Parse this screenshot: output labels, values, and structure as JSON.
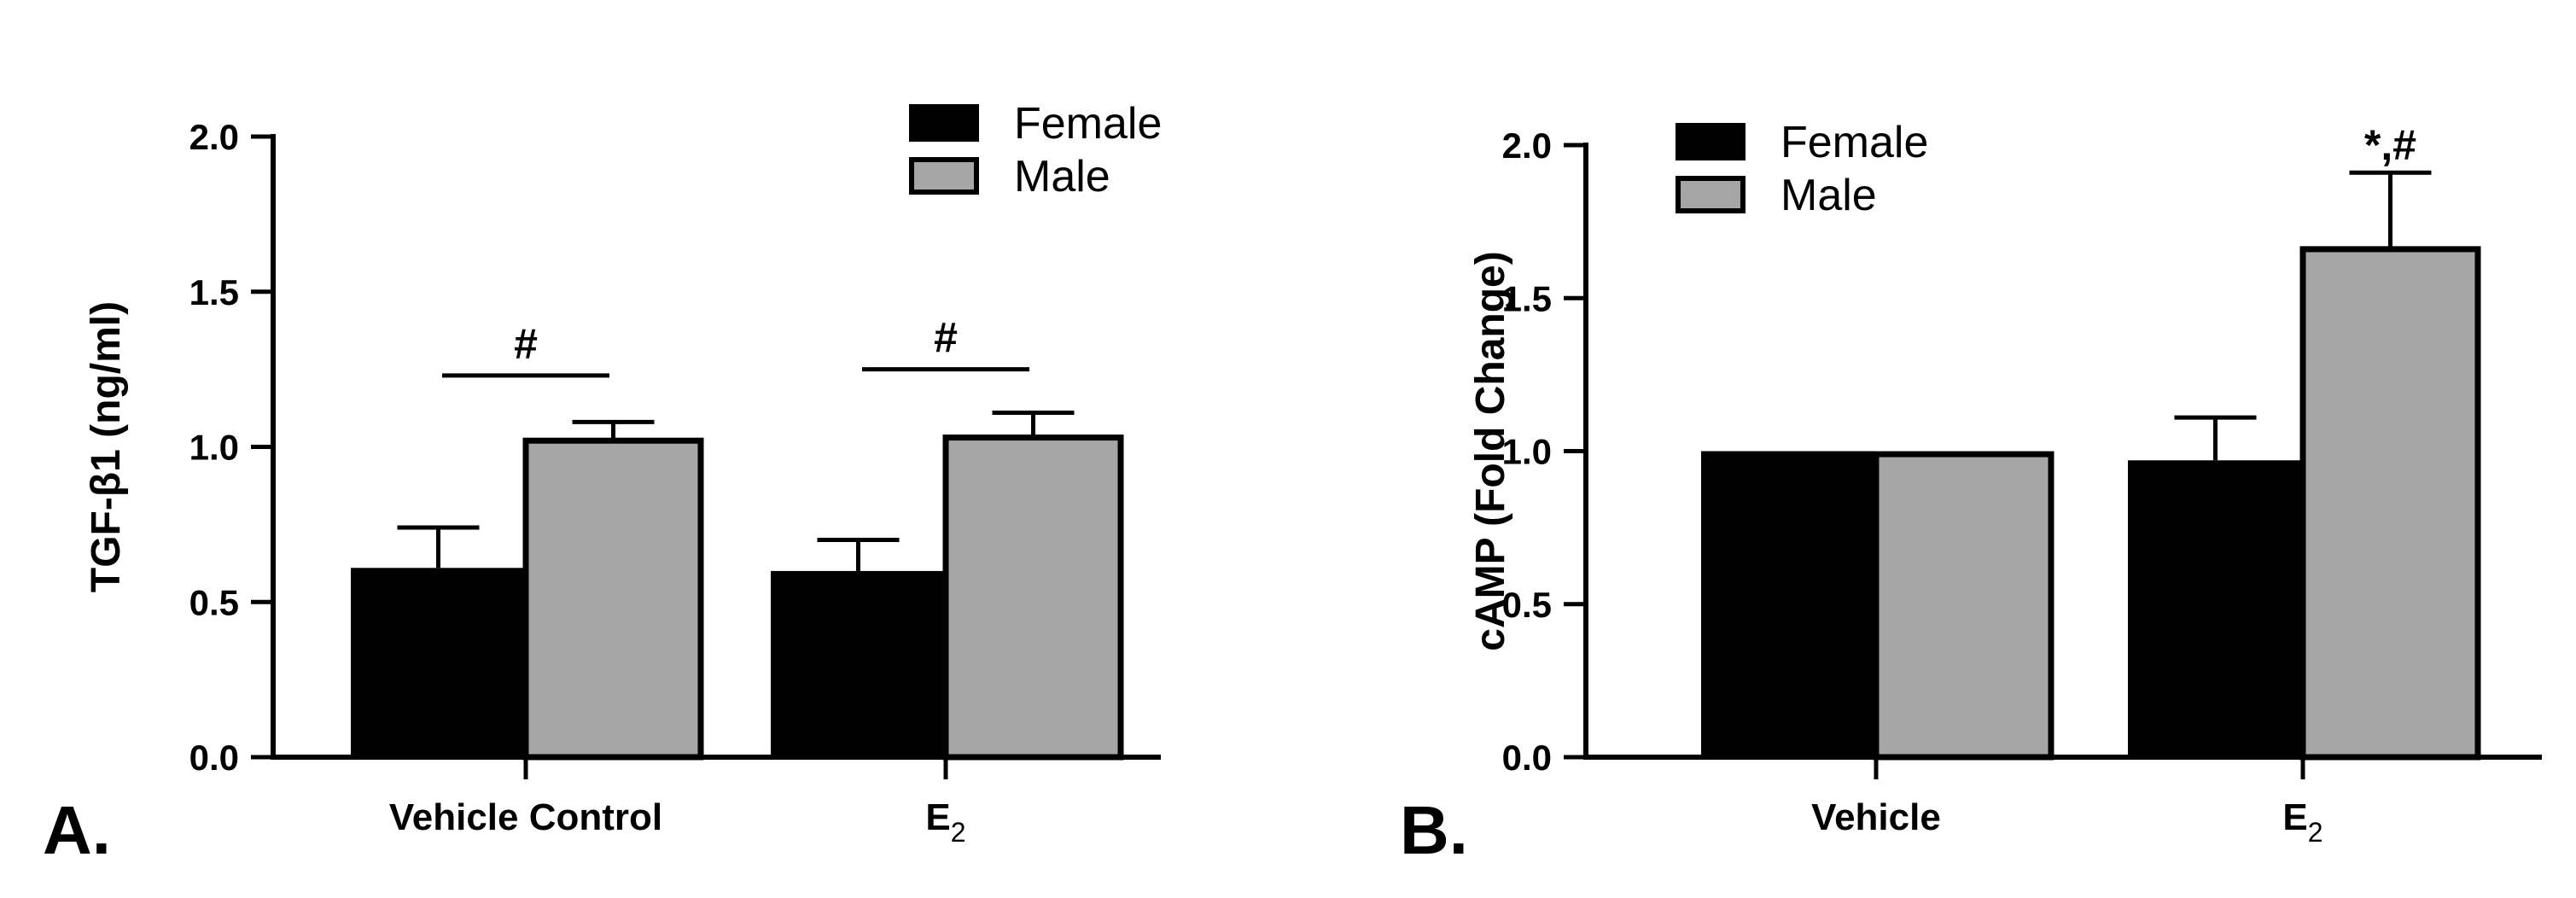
{
  "chart_data": [
    {
      "panel_label": "A.",
      "type": "bar",
      "title": "",
      "xlabel": "",
      "ylabel": "TGF-β1 (ng/ml)",
      "ylim": [
        0,
        2.0
      ],
      "yticks": [
        "0.0",
        "0.5",
        "1.0",
        "1.5",
        "2.0"
      ],
      "ytick_values": [
        0,
        0.5,
        1.0,
        1.5,
        2.0
      ],
      "categories": [
        {
          "label": "Vehicle Control",
          "subscript": ""
        },
        {
          "label": "E",
          "subscript": "2"
        }
      ],
      "series": [
        {
          "name": "Female",
          "color": "#000000",
          "values": [
            0.61,
            0.6
          ],
          "errors": [
            0.13,
            0.1
          ]
        },
        {
          "name": "Male",
          "color": "#a6a6a6",
          "values": [
            1.02,
            1.03
          ],
          "errors": [
            0.06,
            0.08
          ]
        }
      ],
      "legend_position": "top-right",
      "annotations": [
        {
          "text": "#",
          "category_index": 0,
          "level": 1.23
        },
        {
          "text": "#",
          "category_index": 1,
          "level": 1.25
        }
      ]
    },
    {
      "panel_label": "B.",
      "type": "bar",
      "title": "",
      "xlabel": "",
      "ylabel": "cAMP (Fold Change)",
      "ylim": [
        0,
        2.0
      ],
      "yticks": [
        "0.0",
        "0.5",
        "1.0",
        "1.5",
        "2.0"
      ],
      "ytick_values": [
        0,
        0.5,
        1.0,
        1.5,
        2.0
      ],
      "categories": [
        {
          "label": "Vehicle",
          "subscript": ""
        },
        {
          "label": "E",
          "subscript": "2"
        }
      ],
      "series": [
        {
          "name": "Female",
          "color": "#000000",
          "values": [
            1.0,
            0.97
          ],
          "errors": [
            0,
            0.14
          ]
        },
        {
          "name": "Male",
          "color": "#a6a6a6",
          "values": [
            0.99,
            1.66
          ],
          "errors": [
            0,
            0.25
          ]
        }
      ],
      "legend_position": "top-left",
      "annotations": [
        {
          "text": "*,#",
          "category_index": 1,
          "series_index": 1,
          "level": 1.98
        }
      ]
    }
  ]
}
